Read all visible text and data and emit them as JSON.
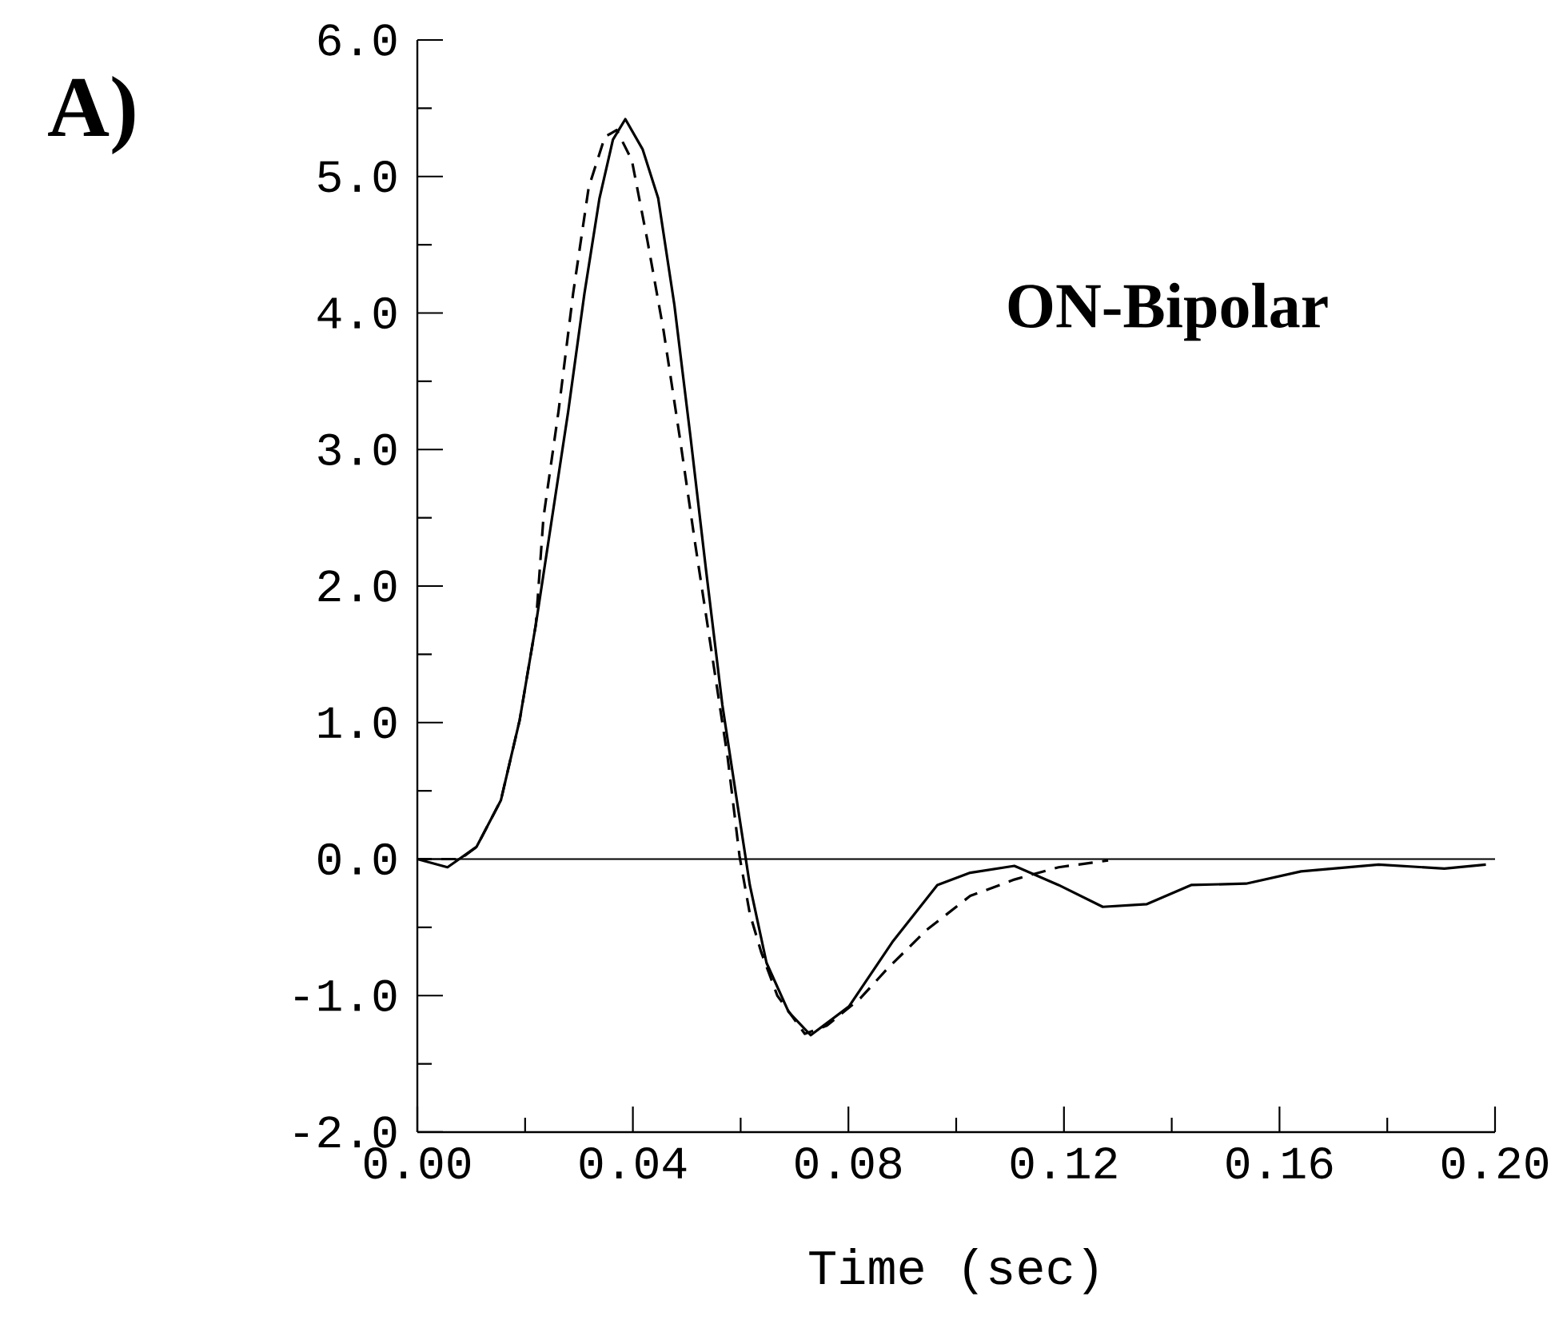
{
  "chart_data": {
    "type": "line",
    "title": "ON-Bipolar",
    "xlabel": "Time (sec)",
    "annotations": [
      "A)"
    ],
    "xlim": [
      0,
      0.2
    ],
    "ylim": [
      -2,
      6
    ],
    "xticks": [
      {
        "value": 0,
        "label": "0.00"
      },
      {
        "value": 0.02,
        "label": null
      },
      {
        "value": 0.04,
        "label": "0.04"
      },
      {
        "value": 0.06,
        "label": null
      },
      {
        "value": 0.08,
        "label": "0.08"
      },
      {
        "value": 0.1,
        "label": null
      },
      {
        "value": 0.12,
        "label": "0.12"
      },
      {
        "value": 0.14,
        "label": null
      },
      {
        "value": 0.16,
        "label": "0.16"
      },
      {
        "value": 0.18,
        "label": null
      },
      {
        "value": 0.2,
        "label": "0.20"
      }
    ],
    "yticks": [
      {
        "value": -2,
        "label": "-2.0"
      },
      {
        "value": -1.5,
        "label": null
      },
      {
        "value": -1,
        "label": "-1.0"
      },
      {
        "value": -0.5,
        "label": null
      },
      {
        "value": 0,
        "label": "0.0"
      },
      {
        "value": 0.5,
        "label": null
      },
      {
        "value": 1,
        "label": "1.0"
      },
      {
        "value": 1.5,
        "label": null
      },
      {
        "value": 2,
        "label": "2.0"
      },
      {
        "value": 2.5,
        "label": null
      },
      {
        "value": 3,
        "label": "3.0"
      },
      {
        "value": 3.5,
        "label": null
      },
      {
        "value": 4,
        "label": "4.0"
      },
      {
        "value": 4.5,
        "label": null
      },
      {
        "value": 5,
        "label": "5.0"
      },
      {
        "value": 5.5,
        "label": null
      },
      {
        "value": 6,
        "label": "6.0"
      }
    ],
    "ref_lines": [
      {
        "axis": "y",
        "value": 0,
        "color": "#000000"
      }
    ],
    "series": [
      {
        "color": "#000000",
        "line_style": "solid",
        "x": [
          0,
          0.0056,
          0.011,
          0.0155,
          0.019,
          0.022,
          0.025,
          0.028,
          0.031,
          0.0338,
          0.0363,
          0.0386,
          0.0418,
          0.0447,
          0.0477,
          0.0507,
          0.0536,
          0.0566,
          0.0596,
          0.0617,
          0.0648,
          0.0689,
          0.073,
          0.0801,
          0.0883,
          0.0965,
          0.1026,
          0.1108,
          0.119,
          0.1272,
          0.1354,
          0.1436,
          0.1538,
          0.164,
          0.1784,
          0.1906,
          0.1983
        ],
        "values": [
          0,
          -0.06,
          0.09,
          0.43,
          1.02,
          1.72,
          2.5,
          3.28,
          4.14,
          4.84,
          5.27,
          5.42,
          5.2,
          4.84,
          4.06,
          3.09,
          2.11,
          1.13,
          0.35,
          -0.19,
          -0.76,
          -1.12,
          -1.29,
          -1.08,
          -0.6,
          -0.19,
          -0.1,
          -0.05,
          -0.19,
          -0.35,
          -0.33,
          -0.19,
          -0.18,
          -0.09,
          -0.04,
          -0.07,
          -0.04
        ]
      },
      {
        "color": "#000000",
        "line_style": "dashed",
        "x": [
          0,
          0.008,
          0.011,
          0.0155,
          0.019,
          0.022,
          0.0234,
          0.0262,
          0.0289,
          0.0318,
          0.0348,
          0.037,
          0.0398,
          0.0427,
          0.0457,
          0.0487,
          0.0516,
          0.0546,
          0.0576,
          0.0598,
          0.0617,
          0.0638,
          0.0668,
          0.0719,
          0.076,
          0.0822,
          0.0873,
          0.0945,
          0.1026,
          0.1108,
          0.119,
          0.1282
        ],
        "values": [
          0,
          0,
          0.09,
          0.43,
          1.02,
          1.72,
          2.5,
          3.28,
          4.14,
          4.92,
          5.29,
          5.34,
          5.12,
          4.53,
          3.87,
          3.09,
          2.3,
          1.52,
          0.74,
          0.02,
          -0.4,
          -0.68,
          -1.0,
          -1.28,
          -1.22,
          -1.02,
          -0.8,
          -0.52,
          -0.27,
          -0.15,
          -0.06,
          -0.01
        ]
      }
    ]
  }
}
